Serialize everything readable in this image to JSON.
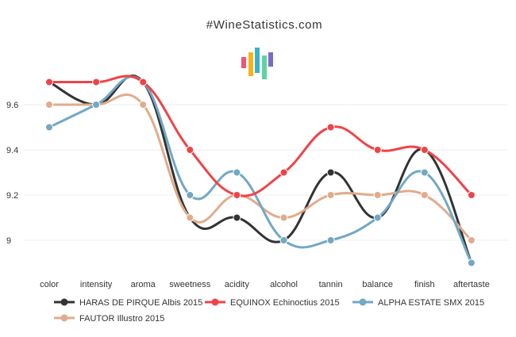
{
  "chart_data": {
    "type": "line",
    "title": "#WineStatistics.com",
    "categories": [
      "color",
      "intensity",
      "aroma",
      "sweetness",
      "acidity",
      "alcohol",
      "tannin",
      "balance",
      "finish",
      "aftertaste"
    ],
    "ylim": [
      8.9,
      9.8
    ],
    "yticks": [
      9,
      9.2,
      9.4,
      9.6
    ],
    "ytick_labels": [
      "9",
      "9.2",
      "9.4",
      "9.6"
    ],
    "grid": true,
    "legend_position": "bottom",
    "series": [
      {
        "name": "HARAS DE PIRQUE Albis 2015",
        "color": "#333333",
        "values": [
          9.7,
          9.6,
          9.7,
          9.1,
          9.1,
          9.0,
          9.3,
          9.1,
          9.4,
          8.9
        ]
      },
      {
        "name": "EQUINOX Echinoctius 2015",
        "color": "#ef4348",
        "values": [
          9.7,
          9.7,
          9.7,
          9.4,
          9.2,
          9.3,
          9.5,
          9.4,
          9.4,
          9.2
        ]
      },
      {
        "name": "ALPHA ESTATE SMX 2015",
        "color": "#72a8c4",
        "values": [
          9.5,
          9.6,
          9.7,
          9.2,
          9.3,
          9.0,
          9.0,
          9.1,
          9.3,
          8.9
        ]
      },
      {
        "name": "FAUTOR Illustro 2015",
        "color": "#e0ac8c",
        "values": [
          9.6,
          9.6,
          9.6,
          9.1,
          9.2,
          9.1,
          9.2,
          9.2,
          9.2,
          9.0
        ]
      }
    ]
  },
  "logo": {
    "colors": [
      "#f0527a",
      "#f5b21a",
      "#3bb0c9",
      "#5dd3a3",
      "#7b6bc4"
    ]
  }
}
